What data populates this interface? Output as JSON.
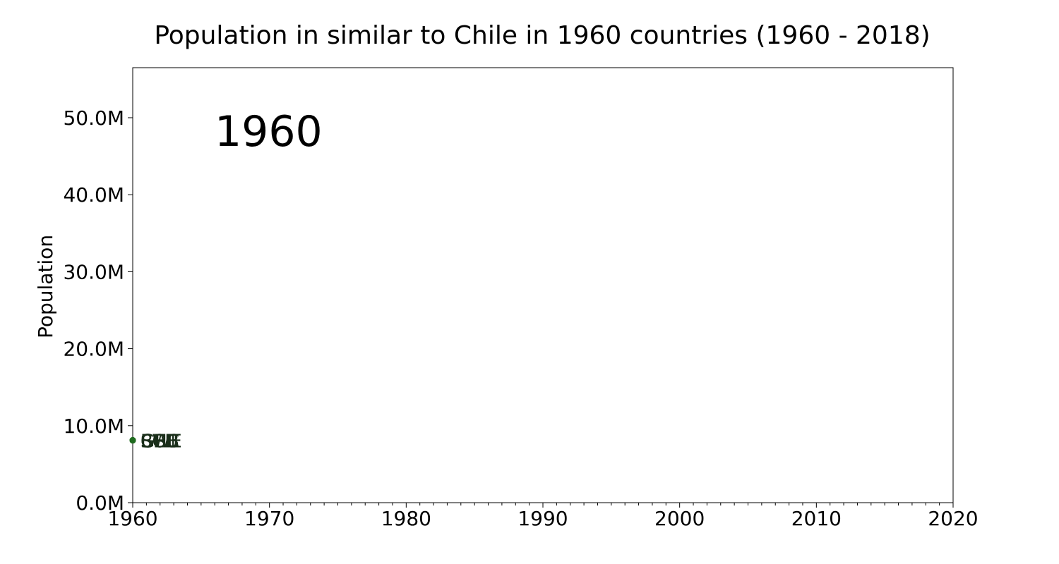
{
  "chart_data": {
    "type": "scatter",
    "title": "Population in similar to Chile in 1960 countries (1960 - 2018)",
    "xlabel": "",
    "ylabel": "Population",
    "xlim": [
      1960,
      2020
    ],
    "ylim": [
      0,
      56500000
    ],
    "x_ticks": [
      1960,
      1970,
      1980,
      1990,
      2000,
      2010,
      2020
    ],
    "x_tick_labels": [
      "1960",
      "1970",
      "1980",
      "1990",
      "2000",
      "2010",
      "2020"
    ],
    "y_ticks": [
      0,
      10000000,
      20000000,
      30000000,
      40000000,
      50000000
    ],
    "y_tick_labels": [
      "0.0M",
      "10.0M",
      "20.0M",
      "30.0M",
      "40.0M",
      "50.0M"
    ],
    "year_annotation": "1960",
    "grid": false,
    "series": [
      {
        "name": "CHL",
        "color": "#1f6b1f",
        "x": [
          1960
        ],
        "values": [
          8100000
        ]
      },
      {
        "name": "BEL",
        "color": "#1f6b1f",
        "x": [
          1960
        ],
        "values": [
          8100000
        ]
      },
      {
        "name": "SWE",
        "color": "#1f6b1f",
        "x": [
          1960
        ],
        "values": [
          8100000
        ]
      },
      {
        "name": "CUB",
        "color": "#1f6b1f",
        "x": [
          1960
        ],
        "values": [
          8100000
        ]
      },
      {
        "name": "GRC",
        "color": "#1f6b1f",
        "x": [
          1960
        ],
        "values": [
          8100000
        ]
      },
      {
        "name": "ECU",
        "color": "#1f6b1f",
        "x": [
          1960
        ],
        "values": [
          8100000
        ]
      }
    ]
  }
}
